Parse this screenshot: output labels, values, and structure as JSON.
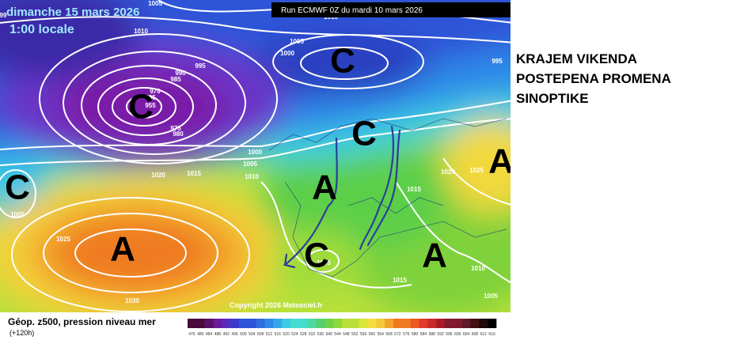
{
  "header": {
    "date": "dimanche 15 mars 2026",
    "time": "1:00 locale",
    "run": "Run ECMWF 0Z du mardi 10 mars 2026"
  },
  "map": {
    "pressure_labels": [
      "1005",
      "1010",
      "1010",
      "1005",
      "1000",
      "995",
      "990",
      "985",
      "970",
      "965",
      "955",
      "975",
      "980",
      "1000",
      "1005",
      "1010",
      "1020",
      "1015",
      "1020",
      "1025",
      "1015",
      "1005",
      "1025",
      "1030",
      "1005",
      "1015",
      "1010",
      "1005",
      "995",
      "99"
    ],
    "centers": [
      "C",
      "C",
      "C",
      "C",
      "A",
      "A",
      "A",
      "C",
      "A"
    ],
    "copyright": "Copyright 2026 Meteociel.fr"
  },
  "headline": [
    "KRAJEM VIKENDA",
    "POSTEPENA PROMENA",
    "SINOPTIKE"
  ],
  "legend": {
    "title": "Géop. z500, pression niveau mer",
    "lead": "(+120h)",
    "scale": [
      476,
      480,
      484,
      488,
      492,
      496,
      500,
      504,
      508,
      512,
      516,
      520,
      524,
      528,
      532,
      536,
      540,
      544,
      548,
      552,
      556,
      560,
      564,
      568,
      572,
      576,
      580,
      584,
      588,
      592,
      596,
      600,
      604,
      608,
      612,
      616
    ]
  }
}
